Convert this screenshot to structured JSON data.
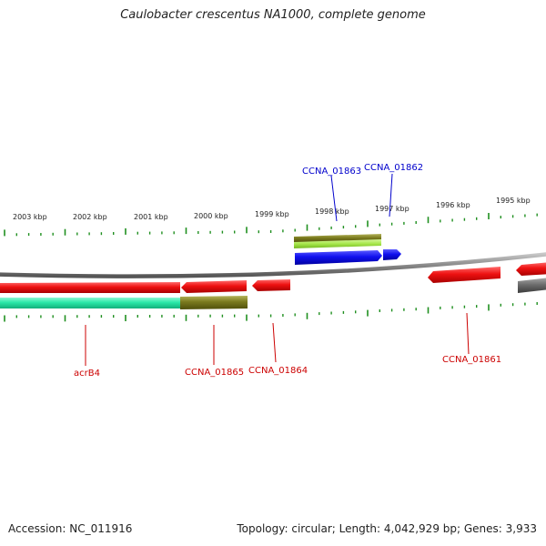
{
  "title": "Caulobacter crescentus NA1000, complete genome",
  "footer": {
    "accession": "Accession: NC_011916",
    "summary": "Topology: circular; Length: 4,042,929 bp; Genes: 3,933"
  },
  "colors": {
    "backbone": "#8a8a8a",
    "gene_red": "#ee1111",
    "gene_blue": "#1010ee",
    "gene_green": "#2ae8a8",
    "gene_olive": "#7a7a1e",
    "gene_lightgreen": "#a6e64a",
    "gene_gray": "#6e6e6e",
    "tick": "#1f8f1f",
    "label_red": "#cc0000",
    "label_blue": "#0000cc"
  },
  "scale": {
    "tick_labels": [
      "2003 kbp",
      "2002 kbp",
      "2001 kbp",
      "2000 kbp",
      "1999 kbp",
      "1998 kbp",
      "1997 kbp",
      "1996 kbp",
      "1995 kbp"
    ]
  },
  "genes": [
    {
      "id": "acrB4",
      "color": "label_red"
    },
    {
      "id": "CCNA_01865",
      "color": "label_red"
    },
    {
      "id": "CCNA_01864",
      "color": "label_red"
    },
    {
      "id": "CCNA_01863",
      "color": "label_blue"
    },
    {
      "id": "CCNA_01862",
      "color": "label_blue"
    },
    {
      "id": "CCNA_01861",
      "color": "label_red"
    }
  ]
}
